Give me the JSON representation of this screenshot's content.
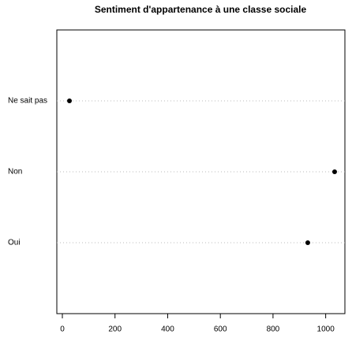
{
  "chart_data": {
    "type": "dot",
    "title": "Sentiment d'appartenance à une classe sociale",
    "categories": [
      "Ne sait pas",
      "Non",
      "Oui"
    ],
    "values": [
      27,
      1034,
      932
    ],
    "color": "#000000",
    "xlim": [
      -21,
      1073
    ],
    "xticks": [
      0,
      200,
      400,
      600,
      800,
      1000
    ]
  }
}
